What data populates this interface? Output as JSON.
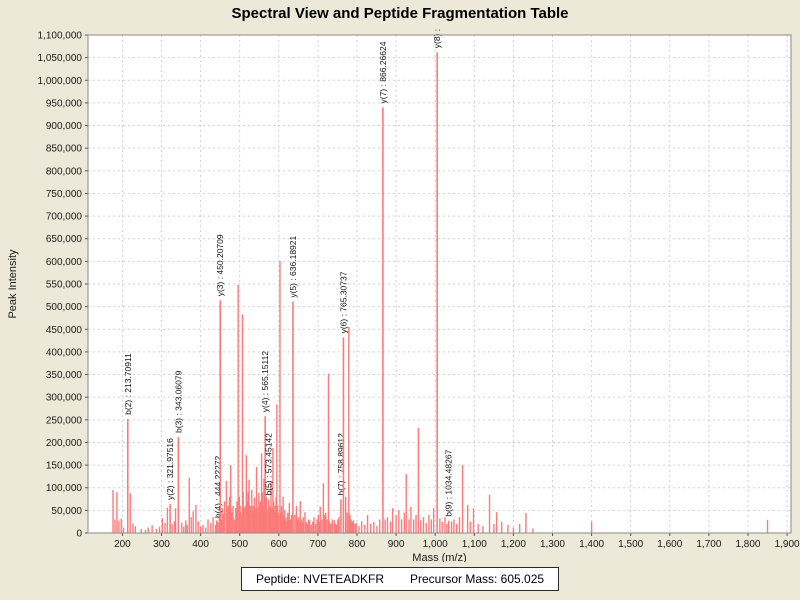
{
  "title": "Spectral View and Peptide Fragmentation Table",
  "footer": {
    "peptide_label": "Peptide: NVETEADKFR",
    "precursor_label": "Precursor Mass: 605.025"
  },
  "colors": {
    "background": "#ece9d8",
    "plot_background": "#ffffff",
    "peak": "#fb7b7b",
    "gridline": "#d2d2d2",
    "plot_border": "#8a8a8a",
    "tick": "#555555",
    "text": "#1a1a1a"
  },
  "chart_data": {
    "type": "bar",
    "title": "Spectral View and Peptide Fragmentation Table",
    "xlabel": "Mass (m/z)",
    "ylabel": "Peak Intensity",
    "xlim": [
      112,
      1910
    ],
    "ylim": [
      0,
      1100000
    ],
    "x_tick_start": 200,
    "x_tick_end": 1900,
    "x_tick_step": 100,
    "y_tick_step": 50000,
    "grid": true,
    "legend": "none",
    "labeled_peaks": [
      {
        "label": "b(2) : 213.70911",
        "mz": 213.70911,
        "intensity": 252000
      },
      {
        "label": "y(2) : 321.97516",
        "mz": 321.97516,
        "intensity": 64000
      },
      {
        "label": "b(3) : 343.06079",
        "mz": 343.06079,
        "intensity": 212000
      },
      {
        "label": "b(4) : 444.22272",
        "mz": 444.22272,
        "intensity": 24000
      },
      {
        "label": "y(3) : 450.20709",
        "mz": 450.20709,
        "intensity": 514000
      },
      {
        "label": "y(4) : 565.15112",
        "mz": 565.15112,
        "intensity": 258000
      },
      {
        "label": "b(5) : 573.45142",
        "mz": 573.45142,
        "intensity": 74000
      },
      {
        "label": "y(5) : 636.18921",
        "mz": 636.18921,
        "intensity": 511000
      },
      {
        "label": "b(7) : 758.89612",
        "mz": 758.89612,
        "intensity": 74000
      },
      {
        "label": "y(6) : 765.30737",
        "mz": 765.30737,
        "intensity": 432000
      },
      {
        "label": "y(7) : 866.26624",
        "mz": 866.26624,
        "intensity": 940000
      },
      {
        "label": "y(8) :",
        "mz": 1005,
        "intensity": 1062000
      },
      {
        "label": "b(9) : 1034.48267",
        "mz": 1034.48267,
        "intensity": 27000
      }
    ],
    "background_peaks": [
      [
        176,
        95000
      ],
      [
        181,
        30000
      ],
      [
        186,
        90000
      ],
      [
        191,
        27000
      ],
      [
        197,
        32000
      ],
      [
        203,
        12000
      ],
      [
        220,
        88000
      ],
      [
        227,
        21000
      ],
      [
        233,
        15000
      ],
      [
        248,
        9000
      ],
      [
        259,
        7000
      ],
      [
        266,
        12000
      ],
      [
        276,
        17000
      ],
      [
        287,
        9000
      ],
      [
        295,
        14000
      ],
      [
        302,
        33000
      ],
      [
        309,
        22000
      ],
      [
        315,
        56000
      ],
      [
        327,
        20000
      ],
      [
        333,
        26000
      ],
      [
        336,
        55000
      ],
      [
        352,
        23000
      ],
      [
        357,
        14000
      ],
      [
        362,
        28000
      ],
      [
        366,
        18000
      ],
      [
        371,
        122000
      ],
      [
        376,
        35000
      ],
      [
        381,
        48000
      ],
      [
        388,
        62000
      ],
      [
        394,
        26000
      ],
      [
        400,
        14000
      ],
      [
        406,
        18000
      ],
      [
        413,
        12000
      ],
      [
        419,
        30000
      ],
      [
        426,
        22000
      ],
      [
        432,
        35000
      ],
      [
        438,
        18000
      ],
      [
        441,
        28000
      ],
      [
        448,
        40000
      ],
      [
        452,
        30000
      ],
      [
        455,
        55000
      ],
      [
        458,
        42000
      ],
      [
        461,
        70000
      ],
      [
        466,
        115000
      ],
      [
        469,
        55000
      ],
      [
        471,
        60000
      ],
      [
        474,
        80000
      ],
      [
        477,
        150000
      ],
      [
        480,
        45000
      ],
      [
        483,
        60000
      ],
      [
        487,
        30000
      ],
      [
        490,
        55000
      ],
      [
        493,
        70000
      ],
      [
        496,
        548000
      ],
      [
        499,
        80000
      ],
      [
        501,
        60000
      ],
      [
        504,
        45000
      ],
      [
        507,
        483000
      ],
      [
        509,
        90000
      ],
      [
        511,
        55000
      ],
      [
        514,
        60000
      ],
      [
        517,
        172000
      ],
      [
        519,
        70000
      ],
      [
        521,
        90000
      ],
      [
        524,
        118000
      ],
      [
        526,
        45000
      ],
      [
        528,
        60000
      ],
      [
        531,
        95000
      ],
      [
        533,
        50000
      ],
      [
        535,
        60000
      ],
      [
        538,
        78000
      ],
      [
        540,
        55000
      ],
      [
        543,
        146000
      ],
      [
        546,
        55000
      ],
      [
        549,
        88000
      ],
      [
        551,
        60000
      ],
      [
        553,
        70000
      ],
      [
        556,
        176000
      ],
      [
        558,
        90000
      ],
      [
        560,
        60000
      ],
      [
        562,
        120000
      ],
      [
        568,
        80000
      ],
      [
        570,
        50000
      ],
      [
        575,
        45000
      ],
      [
        577,
        60000
      ],
      [
        580,
        113000
      ],
      [
        583,
        55000
      ],
      [
        585,
        188000
      ],
      [
        587,
        70000
      ],
      [
        589,
        45000
      ],
      [
        591,
        60000
      ],
      [
        593,
        80000
      ],
      [
        595,
        284000
      ],
      [
        597,
        60000
      ],
      [
        599,
        45000
      ],
      [
        603,
        601000
      ],
      [
        605,
        45000
      ],
      [
        607,
        60000
      ],
      [
        609,
        40000
      ],
      [
        611,
        80000
      ],
      [
        613,
        35000
      ],
      [
        615,
        50000
      ],
      [
        617,
        30000
      ],
      [
        619,
        25000
      ],
      [
        621,
        35000
      ],
      [
        623,
        45000
      ],
      [
        625,
        30000
      ],
      [
        627,
        66000
      ],
      [
        630,
        30000
      ],
      [
        633,
        40000
      ],
      [
        641,
        40000
      ],
      [
        645,
        60000
      ],
      [
        648,
        30000
      ],
      [
        650,
        35000
      ],
      [
        653,
        25000
      ],
      [
        655,
        70000
      ],
      [
        658,
        30000
      ],
      [
        660,
        25000
      ],
      [
        663,
        35000
      ],
      [
        667,
        46000
      ],
      [
        670,
        25000
      ],
      [
        673,
        20000
      ],
      [
        676,
        30000
      ],
      [
        679,
        28000
      ],
      [
        683,
        18000
      ],
      [
        687,
        25000
      ],
      [
        690,
        35000
      ],
      [
        694,
        20000
      ],
      [
        698,
        30000
      ],
      [
        701,
        40000
      ],
      [
        704,
        25000
      ],
      [
        706,
        58000
      ],
      [
        710,
        30000
      ],
      [
        714,
        110000
      ],
      [
        717,
        40000
      ],
      [
        720,
        45000
      ],
      [
        723,
        30000
      ],
      [
        727,
        352000
      ],
      [
        730,
        25000
      ],
      [
        733,
        20000
      ],
      [
        737,
        30000
      ],
      [
        742,
        28000
      ],
      [
        745,
        20000
      ],
      [
        748,
        18000
      ],
      [
        751,
        30000
      ],
      [
        754,
        35000
      ],
      [
        771,
        80000
      ],
      [
        775,
        45000
      ],
      [
        779,
        455000
      ],
      [
        782,
        40000
      ],
      [
        785,
        30000
      ],
      [
        788,
        25000
      ],
      [
        791,
        28000
      ],
      [
        795,
        20000
      ],
      [
        798,
        22000
      ],
      [
        805,
        15000
      ],
      [
        812,
        26000
      ],
      [
        820,
        18000
      ],
      [
        827,
        40000
      ],
      [
        835,
        20000
      ],
      [
        843,
        24000
      ],
      [
        851,
        16000
      ],
      [
        858,
        30000
      ],
      [
        872,
        30000
      ],
      [
        878,
        35000
      ],
      [
        886,
        25000
      ],
      [
        891,
        55000
      ],
      [
        900,
        40000
      ],
      [
        907,
        50000
      ],
      [
        914,
        30000
      ],
      [
        921,
        45000
      ],
      [
        926,
        130000
      ],
      [
        933,
        30000
      ],
      [
        938,
        58000
      ],
      [
        945,
        30000
      ],
      [
        951,
        40000
      ],
      [
        957,
        232000
      ],
      [
        963,
        28000
      ],
      [
        970,
        35000
      ],
      [
        977,
        22000
      ],
      [
        984,
        40000
      ],
      [
        990,
        30000
      ],
      [
        996,
        55000
      ],
      [
        1012,
        32000
      ],
      [
        1018,
        25000
      ],
      [
        1025,
        35000
      ],
      [
        1030,
        20000
      ],
      [
        1042,
        25000
      ],
      [
        1048,
        30000
      ],
      [
        1055,
        20000
      ],
      [
        1062,
        35000
      ],
      [
        1070,
        150000
      ],
      [
        1083,
        62000
      ],
      [
        1090,
        25000
      ],
      [
        1098,
        55000
      ],
      [
        1110,
        20000
      ],
      [
        1122,
        15000
      ],
      [
        1139,
        84000
      ],
      [
        1150,
        20000
      ],
      [
        1157,
        46000
      ],
      [
        1170,
        25000
      ],
      [
        1186,
        18000
      ],
      [
        1200,
        12000
      ],
      [
        1216,
        20000
      ],
      [
        1232,
        44000
      ],
      [
        1250,
        10000
      ],
      [
        1400,
        25000
      ],
      [
        1850,
        29000
      ]
    ]
  }
}
